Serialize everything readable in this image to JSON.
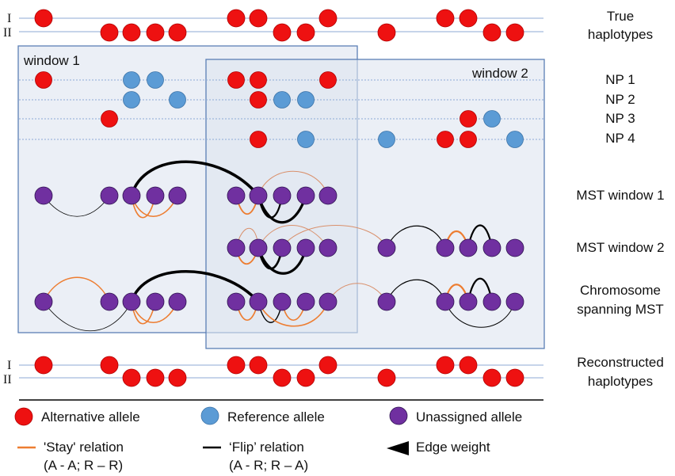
{
  "haplotype_labels": {
    "one": "I",
    "two": "II"
  },
  "windows": {
    "window1": "window 1",
    "window2": "window 2"
  },
  "right_labels": {
    "true_haplotypes": [
      "True",
      "haplotypes"
    ],
    "np": [
      "NP 1",
      "NP 2",
      "NP 3",
      "NP 4"
    ],
    "mst_window_1": "MST window 1",
    "mst_window_2": "MST window 2",
    "chromosome_spanning": [
      "Chromosome",
      "spanning MST"
    ],
    "reconstructed": [
      "Reconstructed",
      "haplotypes"
    ]
  },
  "legend": {
    "alternative": "Alternative allele",
    "reference": "Reference allele",
    "unassigned": "Unassigned allele",
    "stay": [
      "'Stay' relation",
      "(A - A; R – R)"
    ],
    "flip": [
      "‘Flip’ relation",
      "(A - R; R – A)"
    ],
    "weight": "Edge weight"
  },
  "colors": {
    "alternative": "#ee1111",
    "reference": "#5b9bd5",
    "unassigned": "#7030a0",
    "stay": "#ed7d31",
    "flip": "#000000",
    "window_fill": "#dde5f0",
    "window_stroke": "#5b7fb5",
    "track_line": "#8eaad6"
  }
}
